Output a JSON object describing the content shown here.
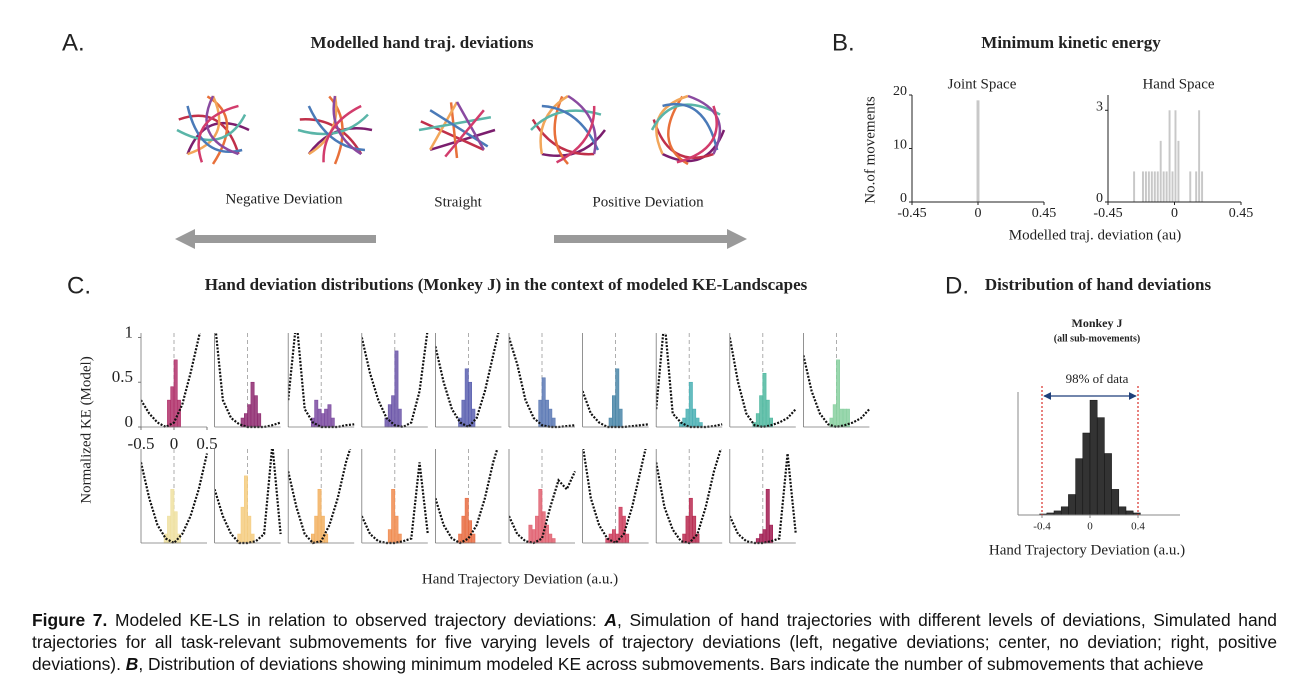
{
  "panel_a": {
    "label": "A.",
    "title": "Modelled hand traj. deviations",
    "labels": [
      "Negative Deviation",
      "Straight",
      "Positive Deviation"
    ]
  },
  "panel_b": {
    "label": "B.",
    "title": "Minimum kinetic energy",
    "ylabel": "No.of movements",
    "xlabel": "Modelled traj. deviation (au)"
  },
  "panel_c": {
    "label": "C.",
    "title": "Hand deviation distributions (Monkey J) in the context of modeled KE-Landscapes"
  },
  "panel_d": {
    "label": "D.",
    "title": "Distribution of hand deviations"
  },
  "chart_data": [
    {
      "type": "histogram",
      "title": "Joint Space",
      "bins": [
        -0.01,
        0.01
      ],
      "values": [
        19
      ],
      "color": "#c8c8c8",
      "xlim": [
        -0.45,
        0.45
      ],
      "xticks": [
        -0.45,
        0,
        0.45
      ],
      "ylim": [
        0,
        20
      ],
      "yticks": [
        0,
        10,
        20
      ]
    },
    {
      "type": "histogram",
      "title": "Hand Space",
      "bins": [
        -0.28,
        -0.26,
        -0.24,
        -0.22,
        -0.2,
        -0.18,
        -0.16,
        -0.14,
        -0.12,
        -0.1,
        -0.08,
        -0.06,
        -0.04,
        -0.02,
        0,
        0.02,
        0.04,
        0.06,
        0.08,
        0.1,
        0.12,
        0.14,
        0.16,
        0.18,
        0.2,
        0.22,
        0.24
      ],
      "values": [
        1,
        0,
        0,
        1,
        1,
        1,
        1,
        1,
        1,
        2,
        1,
        1,
        3,
        1,
        3,
        2,
        0,
        0,
        0,
        1,
        0,
        1,
        3,
        1,
        0,
        0
      ],
      "color": "#c8c8c8",
      "xlim": [
        -0.45,
        0.45
      ],
      "xticks": [
        -0.45,
        0,
        0.45
      ],
      "ylim": [
        0,
        3.5
      ],
      "yticks": [
        0,
        3
      ]
    },
    {
      "type": "small_multiples",
      "ylabel": "Normalized KE (Model)",
      "xlabel": "Hand Trajectory Deviation (a.u.)",
      "xlim": [
        -0.5,
        0.5
      ],
      "xticks": [
        -0.5,
        0,
        0.5
      ],
      "ylim": [
        0,
        1.05
      ],
      "yticks": [
        0,
        0.5,
        1
      ],
      "x": [
        -0.5,
        -0.375,
        -0.25,
        -0.125,
        0,
        0.125,
        0.25,
        0.375,
        0.5
      ],
      "bins": [
        -0.2,
        -0.15,
        -0.1,
        -0.05,
        0,
        0.05,
        0.1,
        0.15,
        0.2
      ],
      "plots": [
        {
          "color": "#b0306a",
          "curve": [
            0.3,
            0.15,
            0.05,
            0.0,
            0.05,
            0.25,
            0.6,
            1.0,
            1.4
          ],
          "bars": [
            0,
            0,
            0.3,
            0.45,
            0.75,
            0.3,
            0,
            0
          ]
        },
        {
          "color": "#8e2a70",
          "curve": [
            1.2,
            0.3,
            0.1,
            0.03,
            0.0,
            0.0,
            0.0,
            0.02,
            0.05
          ],
          "bars": [
            0,
            0,
            0.1,
            0.15,
            0.25,
            0.5,
            0.35,
            0.15
          ]
        },
        {
          "color": "#7b4aa0",
          "curve": [
            0.3,
            1.2,
            0.2,
            0.05,
            0.0,
            0.0,
            0.0,
            0.02,
            0.03
          ],
          "bars": [
            0,
            0.1,
            0.3,
            0.2,
            0.15,
            0.2,
            0.25,
            0.1
          ]
        },
        {
          "color": "#6b55a8",
          "curve": [
            1.0,
            0.6,
            0.3,
            0.1,
            0.02,
            0.0,
            0.05,
            0.4,
            1.1
          ],
          "bars": [
            0,
            0.1,
            0.25,
            0.35,
            0.85,
            0.2,
            0,
            0
          ]
        },
        {
          "color": "#5a60b0",
          "curve": [
            0.9,
            0.5,
            0.2,
            0.05,
            0.0,
            0.1,
            0.4,
            0.8,
            1.2
          ],
          "bars": [
            0,
            0.1,
            0.3,
            0.65,
            0.5,
            0.2,
            0,
            0
          ]
        },
        {
          "color": "#5a78b4",
          "curve": [
            1.0,
            0.7,
            0.3,
            0.1,
            0.02,
            0.0,
            0.0,
            0.01,
            0.02
          ],
          "bars": [
            0,
            0,
            0,
            0.3,
            0.55,
            0.3,
            0.2,
            0.1
          ]
        },
        {
          "color": "#4a86a8",
          "curve": [
            0.4,
            0.15,
            0.05,
            0.0,
            0.0,
            0.0,
            0.01,
            0.02,
            0.03
          ],
          "bars": [
            0,
            0,
            0.1,
            0.35,
            0.65,
            0.2,
            0,
            0
          ]
        },
        {
          "color": "#4ab0b4",
          "curve": [
            0.2,
            1.2,
            0.15,
            0.05,
            0.0,
            0.0,
            0.0,
            0.01,
            0.03
          ],
          "bars": [
            0,
            0.05,
            0.1,
            0.2,
            0.5,
            0.2,
            0.1,
            0.05
          ]
        },
        {
          "color": "#50b8a0",
          "curve": [
            1.0,
            0.5,
            0.15,
            0.02,
            0.0,
            0.02,
            0.05,
            0.1,
            0.2
          ],
          "bars": [
            0,
            0.05,
            0.15,
            0.35,
            0.6,
            0.3,
            0.1,
            0
          ]
        },
        {
          "color": "#88d0a0",
          "curve": [
            0.8,
            0.4,
            0.15,
            0.03,
            0.0,
            0.02,
            0.05,
            0.1,
            0.2
          ],
          "bars": [
            0,
            0,
            0.1,
            0.25,
            0.75,
            0.2,
            0.2,
            0.2
          ]
        },
        {
          "color": "#efe0a0",
          "curve": [
            0.9,
            0.5,
            0.2,
            0.05,
            0.0,
            0.1,
            0.3,
            0.6,
            1.0
          ],
          "bars": [
            0,
            0.1,
            0.3,
            0.6,
            0.35,
            0.1,
            0,
            0
          ]
        },
        {
          "color": "#f5cc80",
          "curve": [
            0.6,
            0.3,
            0.1,
            0.0,
            0.0,
            0.02,
            0.1,
            1.1,
            0.1
          ],
          "bars": [
            0,
            0.1,
            0.4,
            0.75,
            0.3,
            0.1,
            0,
            0
          ]
        },
        {
          "color": "#f2b060",
          "curve": [
            0.8,
            0.4,
            0.1,
            0.0,
            0.02,
            0.2,
            0.5,
            0.9,
            1.2
          ],
          "bars": [
            0,
            0.1,
            0.3,
            0.6,
            0.3,
            0.1,
            0,
            0
          ]
        },
        {
          "color": "#f08c50",
          "curve": [
            0.3,
            0.1,
            0.02,
            0.0,
            0.0,
            0.02,
            0.05,
            0.9,
            0.1
          ],
          "bars": [
            0,
            0,
            0.15,
            0.6,
            0.3,
            0.1,
            0,
            0
          ]
        },
        {
          "color": "#e86c42",
          "curve": [
            0.5,
            0.2,
            0.05,
            0.0,
            0.05,
            0.2,
            0.5,
            0.9,
            1.2
          ],
          "bars": [
            0,
            0.1,
            0.3,
            0.5,
            0.25,
            0.1,
            0,
            0
          ]
        },
        {
          "color": "#e06070",
          "curve": [
            0.3,
            0.1,
            0.02,
            0.0,
            0.05,
            0.4,
            0.7,
            0.6,
            0.8
          ],
          "bars": [
            0.2,
            0.15,
            0.3,
            0.6,
            0.35,
            0.2,
            0.1,
            0.05
          ]
        },
        {
          "color": "#cc3c5c",
          "curve": [
            1.1,
            0.5,
            0.2,
            0.05,
            0.0,
            0.1,
            0.4,
            0.8,
            1.2
          ],
          "bars": [
            0,
            0.05,
            0.1,
            0.15,
            0.1,
            0.4,
            0.3,
            0.1
          ]
        },
        {
          "color": "#b82a50",
          "curve": [
            0.9,
            0.4,
            0.15,
            0.02,
            0.0,
            0.1,
            0.4,
            0.8,
            1.1
          ],
          "bars": [
            0,
            0,
            0.1,
            0.3,
            0.5,
            0.3,
            0.1,
            0
          ]
        },
        {
          "color": "#a01a50",
          "curve": [
            0.3,
            0.1,
            0.02,
            0.0,
            0.0,
            0.02,
            0.05,
            1.0,
            0.1
          ],
          "bars": [
            0,
            0,
            0.05,
            0.1,
            0.15,
            0.6,
            0.2,
            0
          ]
        }
      ]
    },
    {
      "type": "histogram",
      "title": "Monkey J",
      "subtitle": "(all sub-movements)",
      "annotation": "98% of data",
      "interval": [
        -0.4,
        0.4
      ],
      "bins": [
        -0.42,
        -0.36,
        -0.3,
        -0.24,
        -0.18,
        -0.12,
        -0.06,
        0,
        0.06,
        0.12,
        0.18,
        0.24,
        0.3,
        0.36,
        0.42
      ],
      "values": [
        1,
        2,
        4,
        8,
        20,
        55,
        80,
        112,
        95,
        60,
        25,
        8,
        4,
        2
      ],
      "color": "#333333",
      "xlim": [
        -0.6,
        0.75
      ],
      "xticks": [
        -0.4,
        0,
        0.4
      ],
      "ylim": [
        0,
        120
      ],
      "xlabel": "Hand Trajectory Deviation (a.u.)"
    }
  ],
  "caption": {
    "figure": "Figure 7.",
    "intro": "Modeled KE-LS in relation to observed trajectory deviations:",
    "a": "A",
    "a_text": ", Simulation of hand trajectories with different levels of deviations, Simulated hand trajectories for all task-relevant submovements for five varying levels of trajectory deviations (left, negative deviations; center, no deviation; right, positive deviations).",
    "b": "B",
    "b_text": ", Distribution of deviations showing minimum modeled KE across submovements. Bars indicate the number of submovements that achieve"
  }
}
